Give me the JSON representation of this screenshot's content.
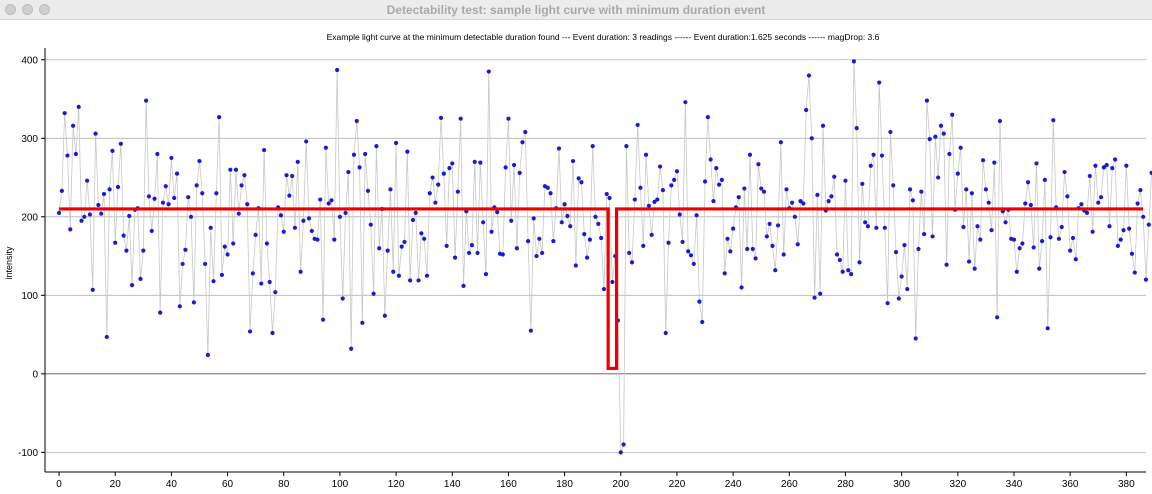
{
  "window": {
    "title": "Detectability test: sample light curve with minimum duration event"
  },
  "chart_data": {
    "type": "line",
    "title": "Example light curve at the minimum detectable duration found --- Event duration: 3 readings ------ Event duration:1.625 seconds ------ magDrop: 3.6",
    "xlabel": "",
    "ylabel": "intensity",
    "xlim": [
      -5,
      387
    ],
    "ylim": [
      -125,
      415
    ],
    "xticks": [
      0,
      20,
      40,
      60,
      80,
      100,
      120,
      140,
      160,
      180,
      200,
      220,
      240,
      260,
      280,
      300,
      320,
      340,
      360,
      380
    ],
    "yticks": [
      -100,
      0,
      100,
      200,
      300,
      400
    ],
    "grid": "horizontal",
    "series": [
      {
        "style": "gray line with blue dots",
        "line_color": "#c8c8c8",
        "marker_color": "#1a1ad6",
        "y": [
          205,
          233,
          332,
          278,
          184,
          316,
          280,
          340,
          195,
          200,
          246,
          203,
          107,
          306,
          215,
          204,
          229,
          47,
          235,
          284,
          167,
          238,
          293,
          176,
          157,
          201,
          113,
          209,
          211,
          121,
          157,
          348,
          226,
          182,
          223,
          280,
          78,
          218,
          239,
          216,
          275,
          224,
          255,
          86,
          140,
          158,
          225,
          200,
          91,
          240,
          271,
          230,
          140,
          24,
          186,
          118,
          230,
          327,
          126,
          162,
          152,
          260,
          166,
          260,
          204,
          240,
          253,
          216,
          54,
          128,
          177,
          211,
          115,
          285,
          166,
          117,
          52,
          104,
          212,
          202,
          181,
          253,
          227,
          252,
          186,
          270,
          130,
          195,
          296,
          198,
          182,
          172,
          171,
          222,
          69,
          288,
          217,
          221,
          171,
          387,
          200,
          96,
          205,
          257,
          32,
          279,
          322,
          263,
          65,
          280,
          233,
          190,
          102,
          290,
          160,
          210,
          74,
          157,
          235,
          130,
          294,
          125,
          162,
          168,
          283,
          119,
          196,
          205,
          119,
          179,
          172,
          125,
          230,
          250,
          218,
          241,
          326,
          255,
          163,
          262,
          268,
          148,
          232,
          325,
          112,
          207,
          154,
          164,
          270,
          154,
          269,
          193,
          127,
          385,
          181,
          212,
          206,
          153,
          152,
          263,
          325,
          195,
          266,
          160,
          256,
          295,
          308,
          169,
          55,
          198,
          150,
          172,
          154,
          239,
          237,
          230,
          169,
          211,
          287,
          193,
          216,
          201,
          188,
          271,
          138,
          249,
          244,
          178,
          148,
          171,
          290,
          200,
          191,
          173,
          108,
          229,
          224,
          117,
          150,
          68,
          -100,
          -90,
          290,
          154,
          142,
          222,
          317,
          237,
          163,
          279,
          214,
          177,
          219,
          222,
          264,
          234,
          52,
          167,
          240,
          247,
          258,
          203,
          168,
          346,
          156,
          151,
          140,
          202,
          92,
          66,
          245,
          327,
          273,
          220,
          262,
          241,
          247,
          128,
          172,
          156,
          185,
          212,
          225,
          110,
          236,
          159,
          279,
          159,
          147,
          267,
          236,
          232,
          175,
          191,
          163,
          132,
          189,
          295,
          152,
          235,
          211,
          218,
          200,
          165,
          220,
          217,
          336,
          380,
          300,
          97,
          228,
          102,
          316,
          208,
          220,
          226,
          251,
          152,
          145,
          130,
          246,
          132,
          127,
          398,
          313,
          142,
          242,
          193,
          188,
          265,
          279,
          186,
          371,
          278,
          186,
          90,
          308,
          240,
          155,
          96,
          124,
          164,
          108,
          235,
          221,
          45,
          159,
          232,
          178,
          348,
          299,
          175,
          302,
          250,
          316,
          306,
          139,
          280,
          330,
          209,
          255,
          288,
          187,
          235,
          143,
          230,
          134,
          188,
          171,
          272,
          235,
          218,
          183,
          269,
          72,
          322,
          207,
          193,
          209,
          172,
          171,
          130,
          160,
          166,
          217,
          244,
          215,
          161,
          268,
          134,
          169,
          247,
          58,
          174,
          323,
          212,
          172,
          187,
          257,
          226,
          157,
          173,
          146,
          211,
          216,
          208,
          205,
          252,
          181,
          265,
          218,
          225,
          263,
          266,
          188,
          262,
          273,
          163,
          171,
          183,
          265,
          185,
          153,
          129,
          217,
          234,
          200,
          120,
          190,
          256
        ]
      },
      {
        "style": "red square-wave model",
        "line_color": "#ee0000",
        "points": [
          [
            0,
            210
          ],
          [
            195.5,
            210
          ],
          [
            195.5,
            7
          ],
          [
            198.5,
            7
          ],
          [
            198.5,
            210
          ],
          [
            386,
            210
          ]
        ]
      }
    ]
  }
}
